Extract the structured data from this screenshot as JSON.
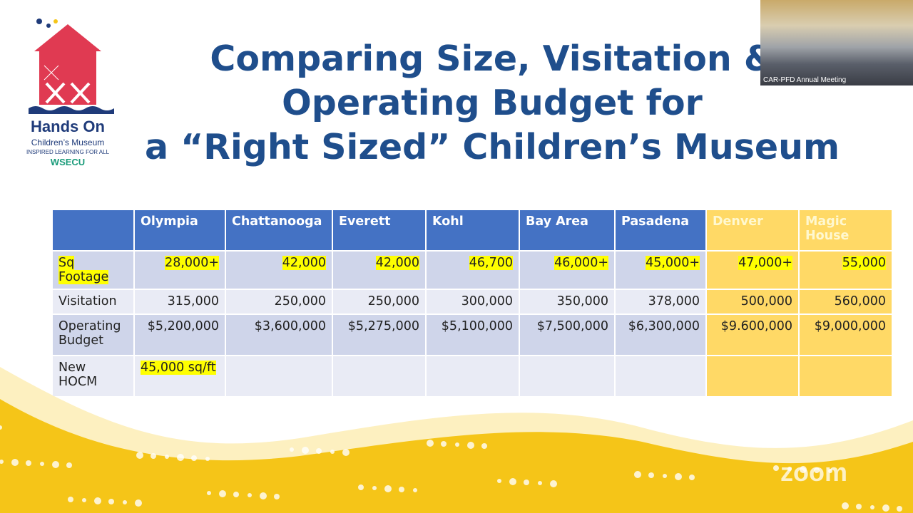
{
  "slide": {
    "title_lines": [
      "Comparing Size, Visitation &",
      "Operating Budget for",
      "a “Right Sized” Children’s Museum"
    ]
  },
  "logo": {
    "name": "Hands On",
    "subtitle": "Children’s Museum",
    "tagline": "INSPIRED LEARNING FOR ALL",
    "sponsor": "WSECU"
  },
  "table": {
    "headers": [
      "",
      "Olympia",
      "Chattanooga",
      "Everett",
      "Kohl",
      "Bay Area",
      "Pasadena",
      "Denver",
      "Magic House"
    ],
    "rows": [
      {
        "label": "Sq Footage",
        "values": [
          "28,000+",
          "42,000",
          "42,000",
          "46,700",
          "46,000+",
          "45,000+",
          "47,000+",
          "55,000"
        ]
      },
      {
        "label": "Visitation",
        "values": [
          "315,000",
          "250,000",
          "250,000",
          "300,000",
          "350,000",
          "378,000",
          "500,000",
          "560,000"
        ]
      },
      {
        "label": "Operating Budget",
        "values": [
          "$5,200,000",
          "$3,600,000",
          "$5,275,000",
          "$5,100,000",
          "$7,500,000",
          "$6,300,000",
          "$9.600,000",
          "$9,000,000"
        ]
      },
      {
        "label": "New HOCM",
        "values": [
          "45,000 sq/ft",
          "",
          "",
          "",
          "",
          "",
          "",
          ""
        ]
      }
    ]
  },
  "video": {
    "label": "CAR-PFD Annual Meeting"
  },
  "watermark": "zoom",
  "colors": {
    "title": "#1f4e8c",
    "header": "#4472c4",
    "gold": "#ffd966",
    "highlight": "#ffff00",
    "wave": "#f5c518"
  }
}
